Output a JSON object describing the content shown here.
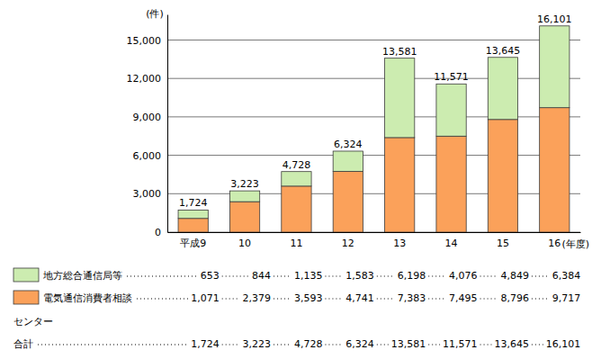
{
  "chart_data": {
    "type": "bar",
    "stacked": true,
    "grid": true,
    "ylabel": "(件)",
    "xlabel": "(年度)",
    "categories": [
      "平成9",
      "10",
      "11",
      "12",
      "13",
      "14",
      "15",
      "16"
    ],
    "series": [
      {
        "name": "地方総合通信局等",
        "color": "#ccecb0",
        "values": [
          653,
          844,
          1135,
          1583,
          6198,
          4076,
          4849,
          6384
        ],
        "value_labels": [
          "653",
          "844",
          "1,135",
          "1,583",
          "6,198",
          "4,076",
          "4,849",
          "6,384"
        ]
      },
      {
        "name": "電気通信消費者相談センター",
        "color": "#fba15a",
        "values": [
          1071,
          2379,
          3593,
          4741,
          7383,
          7495,
          8796,
          9717
        ],
        "value_labels": [
          "1,071",
          "2,379",
          "3,593",
          "4,741",
          "7,383",
          "7,495",
          "8,796",
          "9,717"
        ]
      }
    ],
    "totals": {
      "name": "合計",
      "values": [
        1724,
        3223,
        4728,
        6324,
        13581,
        11571,
        13645,
        16101
      ],
      "value_labels": [
        "1,724",
        "3,223",
        "4,728",
        "6,324",
        "13,581",
        "11,571",
        "13,645",
        "16,101"
      ]
    },
    "ylim": [
      0,
      17000
    ],
    "yticks": [
      0,
      {
        "value": 3000,
        "label": "3,000"
      },
      {
        "value": 6000,
        "label": "6,000"
      },
      {
        "value": 9000,
        "label": "9,000"
      },
      {
        "value": 12000,
        "label": "12,000"
      },
      {
        "value": 15000,
        "label": "15,000"
      }
    ]
  }
}
